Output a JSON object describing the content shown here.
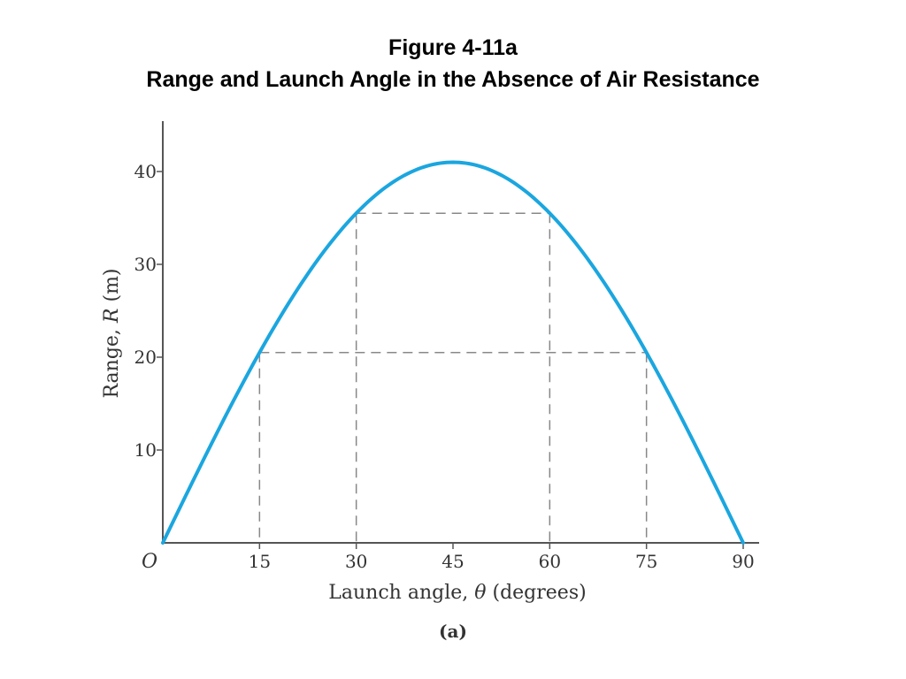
{
  "header": {
    "figure_label": "Figure 4-11a",
    "title": "Range and Launch Angle in the Absence of Air Resistance"
  },
  "chart_data": {
    "type": "line",
    "xlabel_main": "Launch angle, ",
    "xlabel_symbol": "θ",
    "xlabel_unit": " (degrees)",
    "ylabel_main": "Range, ",
    "ylabel_symbol": "R",
    "ylabel_unit": " (m)",
    "panel_label": "(a)",
    "origin_label": "O",
    "xlim": [
      0,
      90
    ],
    "ylim": [
      0,
      45
    ],
    "x_ticks": [
      15,
      30,
      45,
      60,
      75,
      90
    ],
    "y_ticks": [
      10,
      20,
      30,
      40
    ],
    "max_range": 41,
    "series": [
      {
        "x": [
          0,
          5,
          10,
          15,
          20,
          25,
          30,
          35,
          40,
          45,
          50,
          55,
          60,
          65,
          70,
          75,
          80,
          85,
          90
        ],
        "y": [
          0,
          7.1,
          14.0,
          20.5,
          26.4,
          31.4,
          35.5,
          38.5,
          40.4,
          41.0,
          40.4,
          38.5,
          35.5,
          31.4,
          26.4,
          20.5,
          14.0,
          7.1,
          0
        ]
      }
    ],
    "guides": [
      {
        "angles": [
          15,
          75
        ],
        "range": 20.5
      },
      {
        "angles": [
          30,
          60
        ],
        "range": 35.5
      }
    ],
    "colors": {
      "curve": "#1ba6df",
      "axis": "#555555",
      "guide": "#888888"
    }
  }
}
